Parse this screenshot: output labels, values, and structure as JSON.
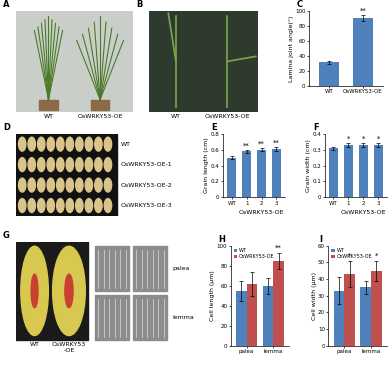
{
  "chart_data": [
    {
      "panel": "C",
      "type": "bar",
      "categories": [
        "WT",
        "OsWRKY53-OE"
      ],
      "values": [
        31,
        91
      ],
      "errors": [
        2,
        4
      ],
      "color": "#4f81bd",
      "ylabel": "Lamina joint angle(°)",
      "ylim": [
        0,
        100
      ],
      "yticks": [
        0,
        20,
        40,
        60,
        80,
        100
      ],
      "annotations": [
        {
          "text": "**",
          "category": "OsWRKY53-OE"
        }
      ]
    },
    {
      "panel": "E",
      "type": "bar",
      "categories": [
        "WT",
        "1",
        "2",
        "3"
      ],
      "values": [
        0.5,
        0.58,
        0.6,
        0.61
      ],
      "errors": [
        0.02,
        0.02,
        0.02,
        0.02
      ],
      "color": "#4f81bd",
      "ylabel": "Grain length (cm)",
      "xlabel": "OsWRKY53-OE",
      "ylim": [
        0,
        0.8
      ],
      "yticks": [
        0,
        0.2,
        0.4,
        0.6,
        0.8
      ],
      "annotations": [
        {
          "text": "**",
          "category": "1"
        },
        {
          "text": "**",
          "category": "2"
        },
        {
          "text": "**",
          "category": "3"
        }
      ]
    },
    {
      "panel": "F",
      "type": "bar",
      "categories": [
        "WT",
        "1",
        "2",
        "3"
      ],
      "values": [
        0.31,
        0.33,
        0.33,
        0.33
      ],
      "errors": [
        0.01,
        0.01,
        0.01,
        0.01
      ],
      "color": "#4f81bd",
      "ylabel": "Grain width (cm)",
      "xlabel": "OsWRKY53-OE",
      "ylim": [
        0,
        0.4
      ],
      "yticks": [
        0,
        0.1,
        0.2,
        0.3,
        0.4
      ],
      "annotations": [
        {
          "text": "*",
          "category": "1"
        },
        {
          "text": "*",
          "category": "2"
        },
        {
          "text": "*",
          "category": "3"
        }
      ]
    },
    {
      "panel": "H",
      "type": "bar",
      "categories": [
        "palea",
        "lemma"
      ],
      "series": [
        {
          "name": "WT",
          "color": "#4f81bd",
          "values": [
            55,
            60
          ],
          "errors": [
            10,
            8
          ]
        },
        {
          "name": "OsWRKY53-OE",
          "color": "#c0504d",
          "values": [
            62,
            85
          ],
          "errors": [
            12,
            8
          ]
        }
      ],
      "ylabel": "Cell length (μm)",
      "ylim": [
        0,
        100
      ],
      "yticks": [
        0,
        20,
        40,
        60,
        80,
        100
      ],
      "legend": "upper left",
      "annotations": [
        {
          "text": "**",
          "category": "lemma",
          "series": "OsWRKY53-OE"
        }
      ]
    },
    {
      "panel": "I",
      "type": "bar",
      "categories": [
        "palea",
        "lemma"
      ],
      "series": [
        {
          "name": "WT",
          "color": "#4f81bd",
          "values": [
            33,
            35
          ],
          "errors": [
            8,
            4
          ]
        },
        {
          "name": "OsWRKY53-OE",
          "color": "#c0504d",
          "values": [
            43,
            45
          ],
          "errors": [
            8,
            6
          ]
        }
      ],
      "ylabel": "Cell width (μm)",
      "ylim": [
        0,
        60
      ],
      "yticks": [
        0,
        10,
        20,
        30,
        40,
        50,
        60
      ],
      "legend": "upper left",
      "annotations": [
        {
          "text": "*",
          "category": "palea",
          "series": "OsWRKY53-OE"
        },
        {
          "text": "*",
          "category": "lemma",
          "series": "OsWRKY53-OE"
        }
      ]
    }
  ],
  "images": [
    {
      "panel": "A",
      "labels": [
        "WT",
        "OsWRKY53-OE"
      ]
    },
    {
      "panel": "B",
      "labels": [
        "WT",
        "OsWRKY53-OE"
      ]
    },
    {
      "panel": "D",
      "labels": [
        "WT",
        "OsWRKY53-OE-1",
        "OsWRKY53-OE-2",
        "OsWRKY53-OE-3"
      ]
    },
    {
      "panel": "G",
      "labels": [
        "WT",
        "OsWRKY53\n-OE"
      ],
      "sublabels": [
        "palea",
        "lemma"
      ]
    }
  ]
}
